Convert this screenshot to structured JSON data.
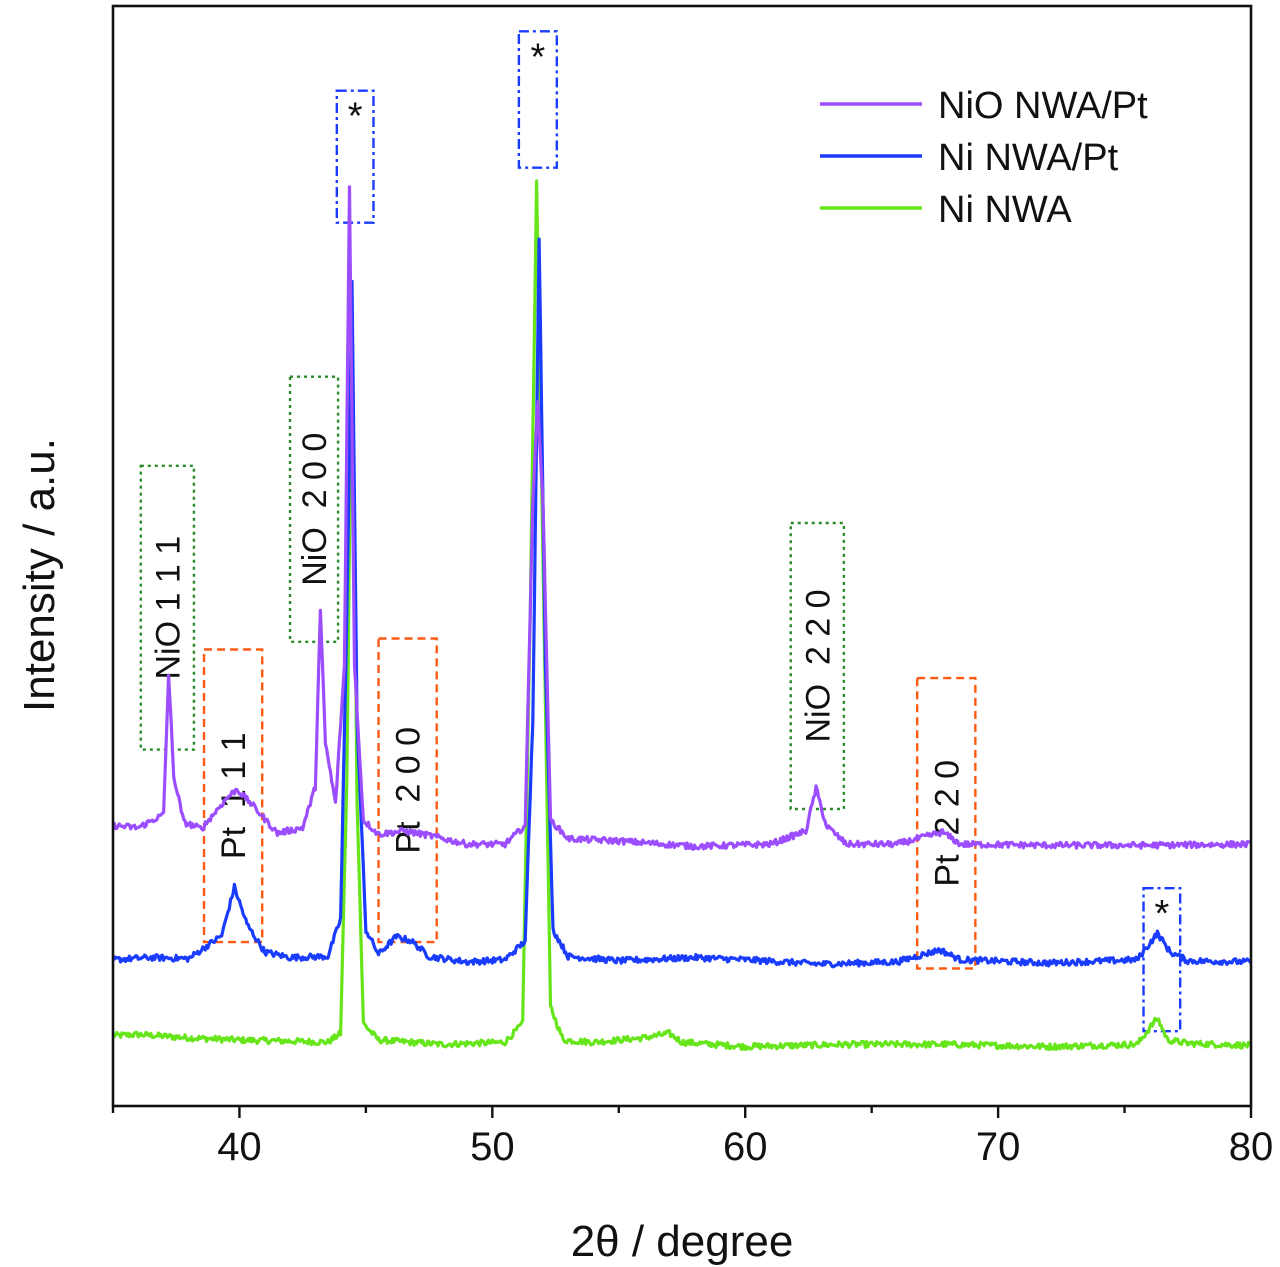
{
  "chart_data": {
    "type": "line",
    "title": "",
    "xlabel": "2θ / degree",
    "ylabel": "Intensity / a.u.",
    "xlim": [
      35,
      80
    ],
    "ylim": [
      0,
      100
    ],
    "x_ticks": [
      40,
      50,
      60,
      70,
      80
    ],
    "y_ticks_shown": false,
    "legend_position": "top-right",
    "series": [
      {
        "name": "NiO NWA/Pt",
        "color": "#9b4dff",
        "baseline": 23.5,
        "points": [
          [
            35,
            25.5
          ],
          [
            36,
            25.3
          ],
          [
            37,
            26.5
          ],
          [
            37.2,
            39.3
          ],
          [
            37.4,
            30
          ],
          [
            37.8,
            25.8
          ],
          [
            38.5,
            25.2
          ],
          [
            39.5,
            28
          ],
          [
            39.9,
            28.8
          ],
          [
            40.5,
            27.4
          ],
          [
            41.5,
            24.8
          ],
          [
            42.5,
            25.3
          ],
          [
            43,
            29
          ],
          [
            43.2,
            45
          ],
          [
            43.4,
            33
          ],
          [
            43.8,
            27.5
          ],
          [
            44.15,
            40
          ],
          [
            44.35,
            83.5
          ],
          [
            44.55,
            40
          ],
          [
            44.9,
            26
          ],
          [
            45.5,
            24.7
          ],
          [
            46.5,
            25
          ],
          [
            47.5,
            24.6
          ],
          [
            49,
            23.8
          ],
          [
            50.5,
            23.8
          ],
          [
            51.3,
            25.5
          ],
          [
            51.6,
            55
          ],
          [
            51.8,
            64
          ],
          [
            52.0,
            55
          ],
          [
            52.3,
            26
          ],
          [
            53,
            24.3
          ],
          [
            55,
            24.1
          ],
          [
            58,
            23.6
          ],
          [
            61,
            23.8
          ],
          [
            62.4,
            25
          ],
          [
            62.8,
            28.9
          ],
          [
            63.2,
            25.5
          ],
          [
            64,
            23.8
          ],
          [
            66,
            23.8
          ],
          [
            67.8,
            24.9
          ],
          [
            68.5,
            23.8
          ],
          [
            72,
            23.7
          ],
          [
            76,
            23.7
          ],
          [
            80,
            23.8
          ]
        ]
      },
      {
        "name": "Ni NWA/Pt",
        "color": "#1a3cff",
        "baseline": 13.1,
        "points": [
          [
            35,
            13.3
          ],
          [
            36.5,
            13.5
          ],
          [
            38,
            13.4
          ],
          [
            39.3,
            15.5
          ],
          [
            39.8,
            19.9
          ],
          [
            40.3,
            16.5
          ],
          [
            41,
            14
          ],
          [
            42,
            13.5
          ],
          [
            43.5,
            13.6
          ],
          [
            44.0,
            17
          ],
          [
            44.25,
            45
          ],
          [
            44.45,
            75
          ],
          [
            44.65,
            35
          ],
          [
            45,
            16
          ],
          [
            45.5,
            13.8
          ],
          [
            46.2,
            15.4
          ],
          [
            46.8,
            15
          ],
          [
            47.5,
            13.6
          ],
          [
            49,
            13.1
          ],
          [
            50.5,
            13.3
          ],
          [
            51.3,
            15
          ],
          [
            51.6,
            35
          ],
          [
            51.85,
            79
          ],
          [
            52.1,
            40
          ],
          [
            52.4,
            16
          ],
          [
            53,
            13.6
          ],
          [
            55,
            13.2
          ],
          [
            58,
            13.5
          ],
          [
            60,
            13.3
          ],
          [
            63,
            12.9
          ],
          [
            66,
            13.1
          ],
          [
            67.7,
            14.2
          ],
          [
            68.5,
            13.3
          ],
          [
            72,
            13
          ],
          [
            75.5,
            13.3
          ],
          [
            76.3,
            15.7
          ],
          [
            76.8,
            14
          ],
          [
            77.5,
            13.2
          ],
          [
            80,
            13.1
          ]
        ]
      },
      {
        "name": "Ni NWA",
        "color": "#66e61a",
        "baseline": 5.8,
        "points": [
          [
            35,
            6.4
          ],
          [
            36,
            6.5
          ],
          [
            38,
            6.2
          ],
          [
            40,
            6
          ],
          [
            42,
            5.9
          ],
          [
            43.5,
            5.8
          ],
          [
            44.0,
            6.6
          ],
          [
            44.25,
            30
          ],
          [
            44.45,
            72
          ],
          [
            44.65,
            28
          ],
          [
            44.9,
            7.5
          ],
          [
            45.5,
            6
          ],
          [
            48,
            5.6
          ],
          [
            50.5,
            5.8
          ],
          [
            51.2,
            7.5
          ],
          [
            51.5,
            45
          ],
          [
            51.75,
            84
          ],
          [
            52.0,
            50
          ],
          [
            52.3,
            9
          ],
          [
            52.8,
            6
          ],
          [
            54,
            5.8
          ],
          [
            56,
            6.2
          ],
          [
            57,
            6.6
          ],
          [
            57.5,
            5.8
          ],
          [
            60,
            5.4
          ],
          [
            64,
            5.6
          ],
          [
            68,
            5.6
          ],
          [
            72,
            5.4
          ],
          [
            75.5,
            5.6
          ],
          [
            76.3,
            8
          ],
          [
            76.7,
            6
          ],
          [
            77.5,
            5.7
          ],
          [
            80,
            5.5
          ]
        ]
      }
    ],
    "annotations": [
      {
        "label": "NiO 1 1 1",
        "phase": "NiO",
        "x": [
          36.1,
          38.2
        ],
        "y": [
          32.4,
          58.2
        ],
        "box": "green-dotted",
        "text_x": 37.1
      },
      {
        "label": "Pt  1 1 1",
        "phase": "Pt",
        "x": [
          38.6,
          40.9
        ],
        "y": [
          14.9,
          41.5
        ],
        "box": "orange-dashed",
        "text_x": 39.4
      },
      {
        "label": "NiO  2 0 0",
        "phase": "NiO",
        "x": [
          42.0,
          43.9
        ],
        "y": [
          42.2,
          66.3
        ],
        "box": "green-dotted",
        "text_x": 42.6
      },
      {
        "label": "*",
        "phase": "Ni",
        "x": [
          43.85,
          45.3
        ],
        "y": [
          80.3,
          92.3
        ],
        "box": "blue-dashdot",
        "text_x": 44.55
      },
      {
        "label": "Pt  2 0 0",
        "phase": "Pt",
        "x": [
          45.5,
          47.8
        ],
        "y": [
          14.9,
          42.5
        ],
        "box": "orange-dashed",
        "text_x": 46.4
      },
      {
        "label": "*",
        "phase": "Ni",
        "x": [
          51.05,
          52.55
        ],
        "y": [
          85.3,
          97.7
        ],
        "box": "blue-dashdot",
        "text_x": 51.8
      },
      {
        "label": "NiO  2 2 0",
        "phase": "NiO",
        "x": [
          61.8,
          63.9
        ],
        "y": [
          27.0,
          53.0
        ],
        "box": "green-dotted",
        "text_x": 62.8
      },
      {
        "label": "Pt  2 2 0",
        "phase": "Pt",
        "x": [
          66.8,
          69.1
        ],
        "y": [
          12.5,
          38.9
        ],
        "box": "orange-dashed",
        "text_x": 67.8
      },
      {
        "label": "*",
        "phase": "Ni",
        "x": [
          75.75,
          77.2
        ],
        "y": [
          6.8,
          19.8
        ],
        "box": "blue-dashdot",
        "text_x": 76.45
      }
    ]
  },
  "colors": {
    "nio_box": "#2a8a2a",
    "pt_box": "#ff5a14",
    "ni_box": "#1a3cff",
    "axis": "#111111"
  }
}
